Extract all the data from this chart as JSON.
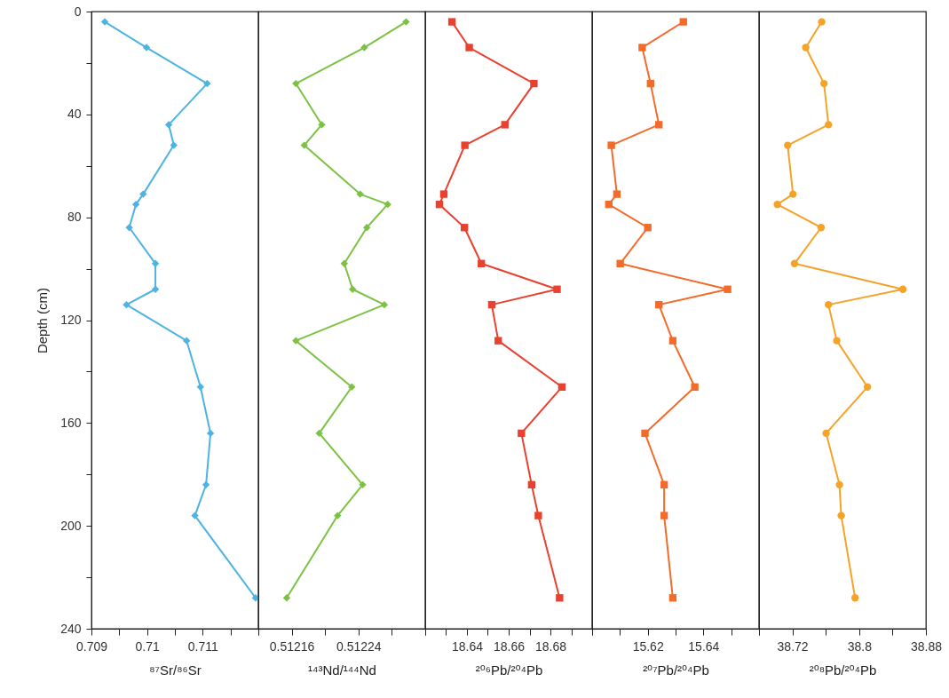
{
  "chart_data": [
    {
      "type": "line",
      "xlabel": "⁸⁷Sr/⁸⁶Sr",
      "ylabel": "Depth (cm)",
      "marker": "diamond",
      "xlim": [
        0.709,
        0.712
      ],
      "xticks": [
        0.709,
        {
          "value": 0.7095,
          "label": null
        },
        0.71,
        {
          "value": 0.7105,
          "label": null
        },
        0.711,
        {
          "value": 0.7115,
          "label": null
        },
        {
          "value": 0.712,
          "label": null
        }
      ],
      "ylim": [
        240,
        0
      ],
      "yticks": [
        0,
        {
          "value": 20,
          "label": null
        },
        40,
        {
          "value": 60,
          "label": null
        },
        80,
        {
          "value": 100,
          "label": null
        },
        120,
        {
          "value": 140,
          "label": null
        },
        160,
        {
          "value": 180,
          "label": null
        },
        200,
        {
          "value": 220,
          "label": null
        },
        240
      ],
      "series": [
        {
          "color": "#4db3e2",
          "x": [
            0.70924,
            0.70999,
            0.71108,
            0.71039,
            0.71048,
            0.70993,
            0.7098,
            0.70968,
            0.71015,
            0.71015,
            0.70963,
            0.71071,
            0.71096,
            0.71114,
            0.71106,
            0.71086,
            0.71195
          ],
          "values": [
            4,
            14,
            28,
            44,
            52,
            71,
            75,
            84,
            98,
            108,
            114,
            128,
            146,
            164,
            184,
            196,
            228
          ]
        }
      ]
    },
    {
      "type": "line",
      "xlabel": "¹⁴³Nd/¹⁴⁴Nd",
      "marker": "diamond",
      "tick_labels": "x",
      "xlim": [
        0.51212,
        0.51232
      ],
      "xticks": [
        {
          "value": 0.51212,
          "label": null
        },
        0.51216,
        {
          "value": 0.5122,
          "label": null
        },
        0.51224,
        {
          "value": 0.51228,
          "label": null
        },
        {
          "value": 0.51232,
          "label": null
        }
      ],
      "ylim": [
        240,
        0
      ],
      "series": [
        {
          "color": "#7cc242",
          "x": [
            0.512297,
            0.512247,
            0.512165,
            0.512196,
            0.512175,
            0.512242,
            0.512275,
            0.51225,
            0.512223,
            0.512233,
            0.512271,
            0.512165,
            0.512232,
            0.512193,
            0.512245,
            0.512215,
            0.512154
          ],
          "values": [
            4,
            14,
            28,
            44,
            52,
            71,
            75,
            84,
            98,
            108,
            114,
            128,
            146,
            164,
            184,
            196,
            228
          ]
        }
      ]
    },
    {
      "type": "line",
      "xlabel": "²⁰⁶Pb/²⁰⁴Pb",
      "marker": "square",
      "tick_labels": "x",
      "xlim": [
        18.62,
        18.7
      ],
      "xticks": [
        {
          "value": 18.62,
          "label": null
        },
        {
          "value": 18.63,
          "label": null
        },
        18.64,
        {
          "value": 18.65,
          "label": null
        },
        18.66,
        {
          "value": 18.67,
          "label": null
        },
        18.68,
        {
          "value": 18.69,
          "label": null
        },
        {
          "value": 18.7,
          "label": null
        }
      ],
      "ylim": [
        240,
        0
      ],
      "series": [
        {
          "color": "#e8412f",
          "x": [
            18.6328,
            18.6411,
            18.6721,
            18.6582,
            18.639,
            18.6289,
            18.6268,
            18.6388,
            18.6469,
            18.6832,
            18.6519,
            18.655,
            18.6855,
            18.6661,
            18.671,
            18.6742,
            18.6844
          ],
          "values": [
            4,
            14,
            28,
            44,
            52,
            71,
            75,
            84,
            98,
            108,
            114,
            128,
            146,
            164,
            184,
            196,
            228
          ]
        }
      ]
    },
    {
      "type": "line",
      "xlabel": "²⁰⁷Pb/²⁰⁴Pb",
      "marker": "square",
      "tick_labels": "x",
      "xlim": [
        15.6,
        15.66
      ],
      "xticks": [
        {
          "value": 15.6,
          "label": null
        },
        {
          "value": 15.61,
          "label": null
        },
        15.62,
        {
          "value": 15.63,
          "label": null
        },
        15.64,
        {
          "value": 15.65,
          "label": null
        },
        {
          "value": 15.66,
          "label": null
        }
      ],
      "ylim": [
        240,
        0
      ],
      "series": [
        {
          "color": "#f26b2a",
          "x": [
            15.6328,
            15.618,
            15.621,
            15.624,
            15.6069,
            15.6089,
            15.606,
            15.62,
            15.6101,
            15.6487,
            15.624,
            15.629,
            15.6369,
            15.619,
            15.6259,
            15.6259,
            15.629
          ],
          "values": [
            4,
            14,
            28,
            44,
            52,
            71,
            75,
            84,
            98,
            108,
            114,
            128,
            146,
            164,
            184,
            196,
            228
          ]
        }
      ]
    },
    {
      "type": "line",
      "xlabel": "²⁰⁸Pb/²⁰⁴Pb",
      "marker": "circle",
      "tick_labels": "x",
      "xlim": [
        38.68,
        38.88
      ],
      "xticks": [
        {
          "value": 38.68,
          "label": null
        },
        38.72,
        {
          "value": 38.76,
          "label": null
        },
        38.8,
        {
          "value": 38.84,
          "label": null
        },
        38.88
      ],
      "ylim": [
        240,
        0
      ],
      "series": [
        {
          "color": "#f5a328",
          "x": [
            38.7551,
            38.736,
            38.7579,
            38.7632,
            38.7143,
            38.7207,
            38.702,
            38.7544,
            38.7225,
            38.8524,
            38.7632,
            38.7732,
            38.8099,
            38.7604,
            38.7764,
            38.7785,
            38.7951
          ],
          "values": [
            4,
            14,
            28,
            44,
            52,
            71,
            75,
            84,
            98,
            108,
            114,
            128,
            146,
            164,
            184,
            196,
            228
          ]
        }
      ]
    }
  ]
}
